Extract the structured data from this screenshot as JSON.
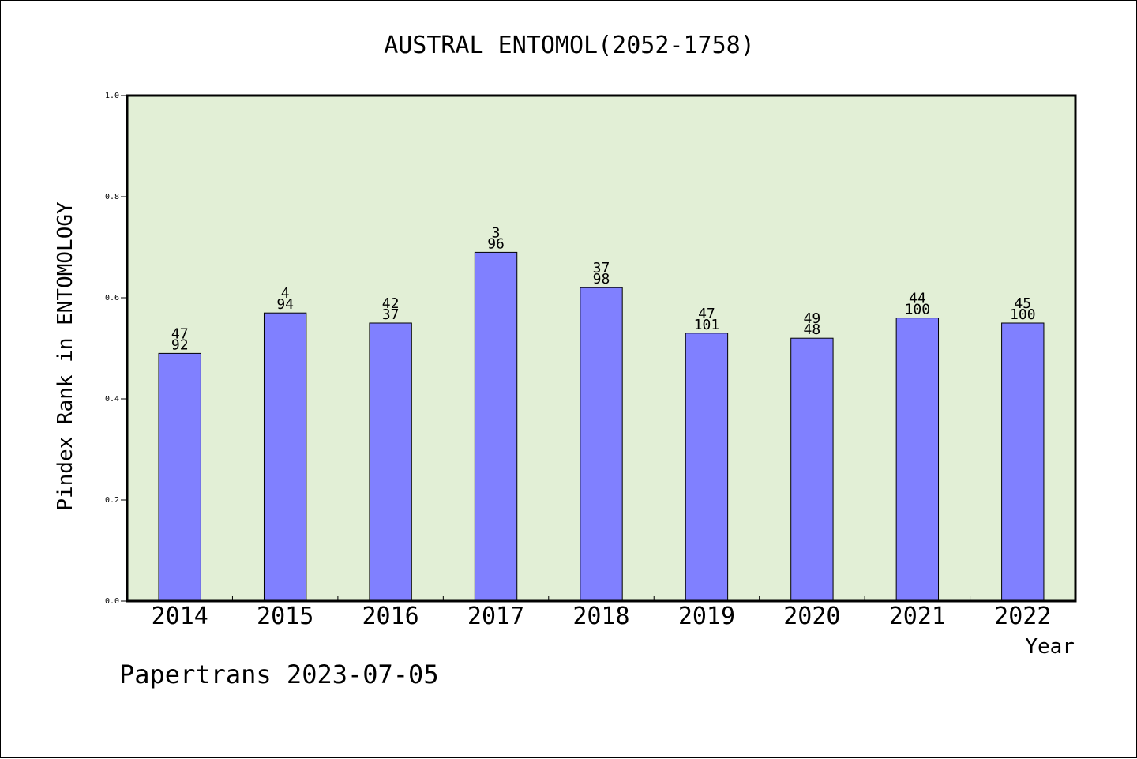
{
  "chart_data": {
    "type": "bar",
    "title": "AUSTRAL ENTOMOL(2052-1758)",
    "xlabel": "Year",
    "ylabel": "Pindex Rank in ENTOMOLOGY",
    "ylim": [
      0,
      1.0
    ],
    "yticks": [
      "0.0",
      "0.2",
      "0.4",
      "0.6",
      "0.8",
      "1.0"
    ],
    "categories": [
      "2014",
      "2015",
      "2016",
      "2017",
      "2018",
      "2019",
      "2020",
      "2021",
      "2022"
    ],
    "values": [
      0.49,
      0.57,
      0.55,
      0.69,
      0.62,
      0.53,
      0.52,
      0.56,
      0.55
    ],
    "label_top": [
      "47",
      "4",
      "42",
      "3",
      "37",
      "47",
      "49",
      "44",
      "45"
    ],
    "label_bottom": [
      "92",
      "94",
      "37",
      "96",
      "98",
      "101",
      "48",
      "100",
      "100"
    ],
    "grid": false,
    "colors": {
      "bar": "#8080ff",
      "plot_bg": "#e2efd6"
    }
  },
  "footer": {
    "text": "Papertrans 2023-07-05"
  }
}
